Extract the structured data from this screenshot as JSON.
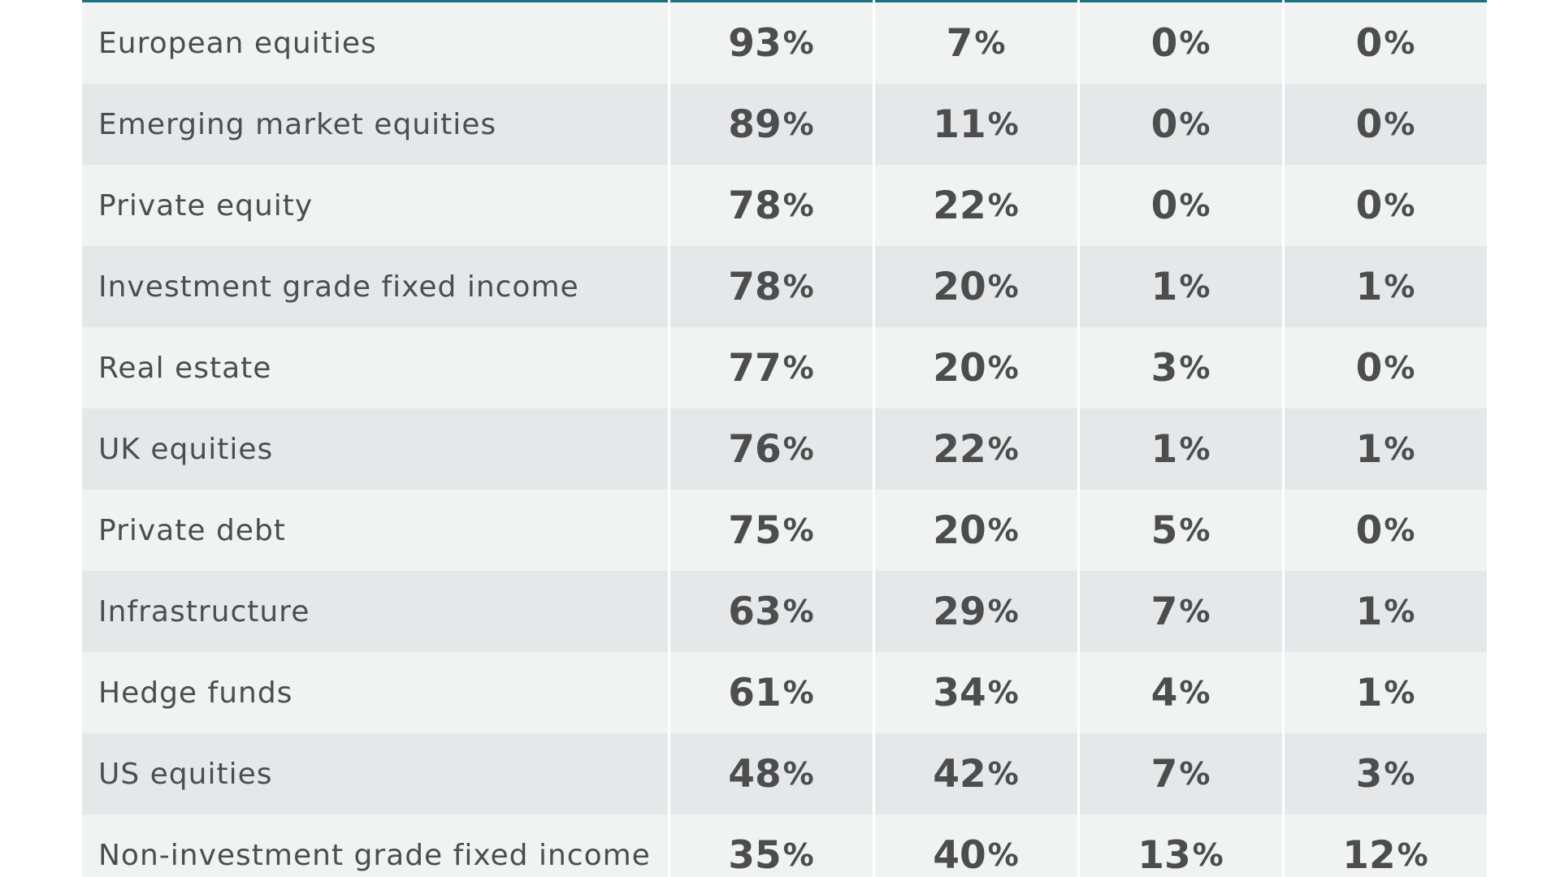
{
  "chart_data": {
    "type": "table",
    "unit_symbol": "%",
    "rows": [
      {
        "label": "European equities",
        "values": [
          93,
          7,
          0,
          0
        ]
      },
      {
        "label": "Emerging market equities",
        "values": [
          89,
          11,
          0,
          0
        ]
      },
      {
        "label": "Private equity",
        "values": [
          78,
          22,
          0,
          0
        ]
      },
      {
        "label": "Investment grade fixed income",
        "values": [
          78,
          20,
          1,
          1
        ]
      },
      {
        "label": "Real estate",
        "values": [
          77,
          20,
          3,
          0
        ]
      },
      {
        "label": "UK equities",
        "values": [
          76,
          22,
          1,
          1
        ]
      },
      {
        "label": "Private debt",
        "values": [
          75,
          20,
          5,
          0
        ]
      },
      {
        "label": "Infrastructure",
        "values": [
          63,
          29,
          7,
          1
        ]
      },
      {
        "label": "Hedge funds",
        "values": [
          61,
          34,
          4,
          1
        ]
      },
      {
        "label": "US equities",
        "values": [
          48,
          42,
          7,
          3
        ]
      },
      {
        "label": "Non-investment grade fixed income",
        "values": [
          35,
          40,
          13,
          12
        ]
      }
    ],
    "colors": {
      "row_light": "#f1f2f2",
      "row_dark": "#e6e7e8",
      "text": "#4d4d4d",
      "header_rule": "#1f6f7c"
    }
  }
}
